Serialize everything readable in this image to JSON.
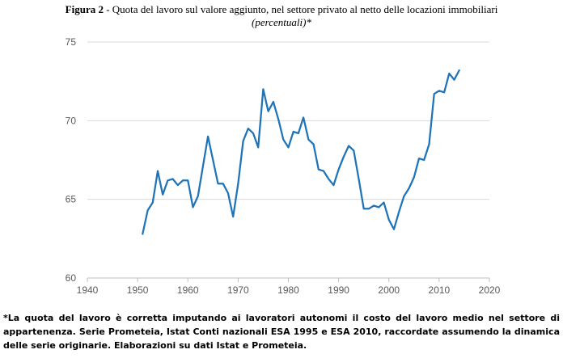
{
  "header": {
    "figure_label": "Figura 2",
    "title_rest": " - Quota del lavoro sul valore aggiunto, nel settore privato al netto delle locazioni immobiliari",
    "subtitle": "(percentuali)*"
  },
  "chart_data": {
    "type": "line",
    "title": "Quota del lavoro sul valore aggiunto, nel settore privato al netto delle locazioni immobiliari",
    "subtitle": "(percentuali)*",
    "xlim": [
      1940,
      2020
    ],
    "ylim": [
      60,
      75
    ],
    "x_ticks": [
      1940,
      1950,
      1960,
      1970,
      1980,
      1990,
      2000,
      2010,
      2020
    ],
    "y_ticks": [
      60,
      65,
      70,
      75
    ],
    "grid": "horizontal",
    "color": "#1f73b7",
    "series": [
      {
        "x": [
          1951,
          1952,
          1953,
          1954,
          1955,
          1956,
          1957,
          1958,
          1959,
          1960,
          1961,
          1962,
          1963,
          1964,
          1965,
          1966,
          1967,
          1968,
          1969,
          1970,
          1971,
          1972,
          1973,
          1974,
          1975,
          1976,
          1977,
          1978,
          1979,
          1980,
          1981,
          1982,
          1983,
          1984,
          1985,
          1986,
          1987,
          1988,
          1989,
          1990,
          1991,
          1992,
          1993,
          1994,
          1995,
          1996,
          1997,
          1998,
          1999,
          2000,
          2001,
          2002,
          2003,
          2004,
          2005,
          2006,
          2007,
          2008,
          2009,
          2010,
          2011,
          2012,
          2013,
          2014
        ],
        "y": [
          62.8,
          64.3,
          64.8,
          66.8,
          65.3,
          66.2,
          66.3,
          65.9,
          66.2,
          66.2,
          64.5,
          65.2,
          67.1,
          69.0,
          67.5,
          66.0,
          66.0,
          65.4,
          63.9,
          66.0,
          68.7,
          69.5,
          69.2,
          68.3,
          72.0,
          70.6,
          71.2,
          70.1,
          68.8,
          68.3,
          69.3,
          69.2,
          70.2,
          68.8,
          68.5,
          66.9,
          66.8,
          66.3,
          65.9,
          66.9,
          67.7,
          68.4,
          68.1,
          66.3,
          64.4,
          64.4,
          64.6,
          64.5,
          64.8,
          63.7,
          63.1,
          64.2,
          65.2,
          65.7,
          66.4,
          67.6,
          67.5,
          68.5,
          71.7,
          71.9,
          71.8,
          73.0,
          72.6,
          73.2
        ]
      }
    ]
  },
  "footnote": "*La quota del lavoro è corretta imputando ai lavoratori autonomi il costo del lavoro medio nel settore di appartenenza. Serie Prometeia, Istat Conti nazionali ESA 1995 e ESA 2010, raccordate assumendo la dinamica delle serie originarie. Elaborazioni su dati Istat e Prometeia."
}
